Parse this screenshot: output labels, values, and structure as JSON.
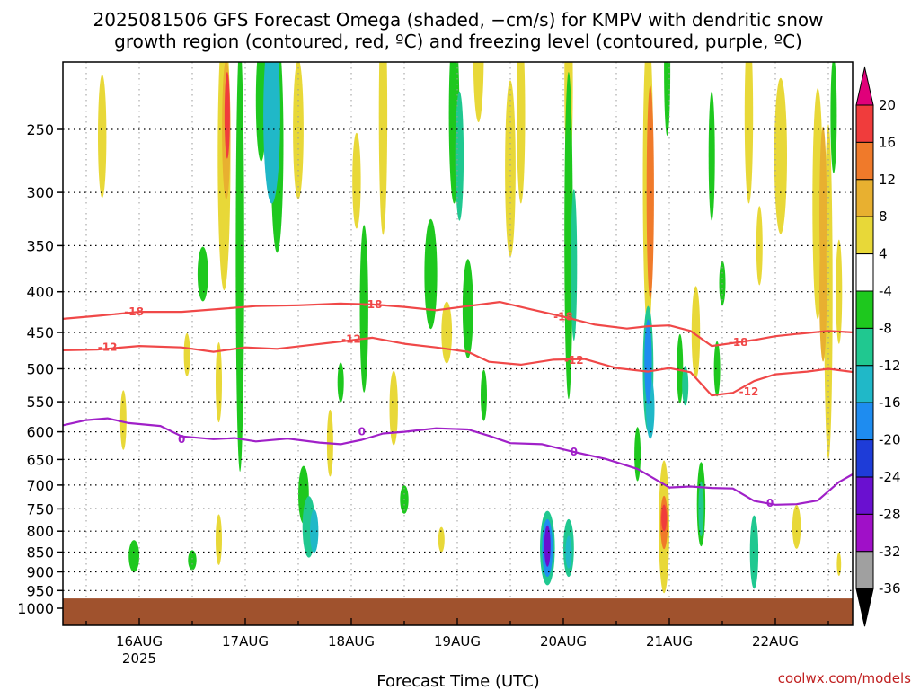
{
  "chart_data": {
    "type": "heatmap",
    "title_line1": "2025081506 GFS Forecast Omega (shaded, −cm/s) for KMPV with dendritic snow",
    "title_line2": "growth region (contoured, red, ºC) and freezing level (contoured, purple, ºC)",
    "xlabel": "Forecast Time (UTC)",
    "credit": "coolwx.com/models",
    "x_ticks": [
      {
        "day": 16,
        "label": "16AUG",
        "sublabel": "2025"
      },
      {
        "day": 17,
        "label": "17AUG",
        "sublabel": ""
      },
      {
        "day": 18,
        "label": "18AUG",
        "sublabel": ""
      },
      {
        "day": 19,
        "label": "19AUG",
        "sublabel": ""
      },
      {
        "day": 20,
        "label": "20AUG",
        "sublabel": ""
      },
      {
        "day": 21,
        "label": "21AUG",
        "sublabel": ""
      },
      {
        "day": 22,
        "label": "22AUG",
        "sublabel": ""
      }
    ],
    "xlim": [
      15.25,
      22.75
    ],
    "y_ticks": [
      250,
      300,
      350,
      400,
      450,
      500,
      550,
      600,
      650,
      700,
      750,
      800,
      850,
      900,
      950,
      1000
    ],
    "ylim": [
      200,
      1020
    ],
    "y_scale": "log-pressure",
    "colorbar": {
      "levels": [
        "20",
        "16",
        "12",
        "8",
        "4",
        "-4",
        "-8",
        "-12",
        "-16",
        "-20",
        "-24",
        "-28",
        "-32",
        "-36"
      ],
      "bins": [
        {
          "color": "#e0007a"
        },
        {
          "color": "#f03c3c"
        },
        {
          "color": "#f07a2a"
        },
        {
          "color": "#e8b030"
        },
        {
          "color": "#e8d838"
        },
        {
          "color": "#ffffff"
        },
        {
          "color": "#1ec81e"
        },
        {
          "color": "#20c890"
        },
        {
          "color": "#20b8c8"
        },
        {
          "color": "#1e8cf0"
        },
        {
          "color": "#1e3cd8"
        },
        {
          "color": "#6a10d0"
        },
        {
          "color": "#a010c8"
        },
        {
          "color": "#a0a0a0"
        },
        {
          "color": "#000000"
        }
      ]
    },
    "contours": [
      {
        "name": "-18",
        "color": "#f04848",
        "label": "-18",
        "points": [
          [
            15.25,
            433
          ],
          [
            15.6,
            429
          ],
          [
            16.0,
            424
          ],
          [
            16.4,
            424
          ],
          [
            16.8,
            420
          ],
          [
            17.1,
            417
          ],
          [
            17.5,
            416
          ],
          [
            17.9,
            414
          ],
          [
            18.2,
            415
          ],
          [
            18.5,
            418
          ],
          [
            18.8,
            422
          ],
          [
            19.1,
            417
          ],
          [
            19.4,
            412
          ],
          [
            19.7,
            421
          ],
          [
            20.0,
            430
          ],
          [
            20.3,
            440
          ],
          [
            20.6,
            445
          ],
          [
            20.8,
            442
          ],
          [
            21.0,
            441
          ],
          [
            21.2,
            448
          ],
          [
            21.4,
            468
          ],
          [
            21.6,
            464
          ],
          [
            21.8,
            460
          ],
          [
            22.0,
            455
          ],
          [
            22.2,
            452
          ],
          [
            22.5,
            448
          ],
          [
            22.75,
            450
          ]
        ],
        "label_at": [
          [
            15.95,
            424
          ],
          [
            18.2,
            415
          ],
          [
            20.0,
            430
          ],
          [
            21.65,
            463
          ]
        ]
      },
      {
        "name": "-12",
        "color": "#f04848",
        "label": "-12",
        "points": [
          [
            15.25,
            474
          ],
          [
            15.6,
            473
          ],
          [
            16.0,
            468
          ],
          [
            16.4,
            470
          ],
          [
            16.7,
            476
          ],
          [
            17.0,
            470
          ],
          [
            17.3,
            472
          ],
          [
            17.6,
            467
          ],
          [
            17.9,
            462
          ],
          [
            18.2,
            457
          ],
          [
            18.5,
            465
          ],
          [
            18.8,
            470
          ],
          [
            19.1,
            476
          ],
          [
            19.3,
            490
          ],
          [
            19.6,
            494
          ],
          [
            19.9,
            487
          ],
          [
            20.2,
            486
          ],
          [
            20.5,
            499
          ],
          [
            20.8,
            504
          ],
          [
            21.0,
            499
          ],
          [
            21.2,
            505
          ],
          [
            21.4,
            540
          ],
          [
            21.6,
            536
          ],
          [
            21.8,
            518
          ],
          [
            22.0,
            508
          ],
          [
            22.3,
            504
          ],
          [
            22.5,
            500
          ],
          [
            22.75,
            505
          ]
        ],
        "label_at": [
          [
            15.7,
            470
          ],
          [
            18.0,
            459
          ],
          [
            20.1,
            488
          ],
          [
            21.75,
            534
          ]
        ]
      },
      {
        "name": "0",
        "color": "#a020c8",
        "label": "0",
        "points": [
          [
            15.25,
            590
          ],
          [
            15.5,
            580
          ],
          [
            15.7,
            577
          ],
          [
            15.9,
            585
          ],
          [
            16.2,
            590
          ],
          [
            16.4,
            608
          ],
          [
            16.7,
            613
          ],
          [
            16.9,
            611
          ],
          [
            17.1,
            617
          ],
          [
            17.4,
            612
          ],
          [
            17.7,
            619
          ],
          [
            17.9,
            622
          ],
          [
            18.1,
            614
          ],
          [
            18.3,
            603
          ],
          [
            18.5,
            600
          ],
          [
            18.8,
            594
          ],
          [
            19.1,
            596
          ],
          [
            19.3,
            607
          ],
          [
            19.5,
            620
          ],
          [
            19.8,
            622
          ],
          [
            20.1,
            636
          ],
          [
            20.4,
            649
          ],
          [
            20.7,
            668
          ],
          [
            21.0,
            705
          ],
          [
            21.2,
            703
          ],
          [
            21.4,
            706
          ],
          [
            21.6,
            707
          ],
          [
            21.8,
            733
          ],
          [
            22.0,
            741
          ],
          [
            22.2,
            740
          ],
          [
            22.4,
            732
          ],
          [
            22.6,
            694
          ],
          [
            22.75,
            676
          ]
        ],
        "label_at": [
          [
            16.4,
            613
          ],
          [
            18.1,
            600
          ],
          [
            20.1,
            636
          ],
          [
            21.95,
            738
          ]
        ]
      }
    ],
    "omega_blobs": [
      {
        "t": 15.65,
        "p": 255,
        "rt": 0.04,
        "rp": 45,
        "v": 5
      },
      {
        "t": 15.85,
        "p": 580,
        "rt": 0.03,
        "rp": 50,
        "v": 5
      },
      {
        "t": 15.95,
        "p": 860,
        "rt": 0.05,
        "rp": 40,
        "v": -6
      },
      {
        "t": 16.45,
        "p": 480,
        "rt": 0.03,
        "rp": 30,
        "v": 5
      },
      {
        "t": 16.5,
        "p": 870,
        "rt": 0.04,
        "rp": 25,
        "v": -5
      },
      {
        "t": 16.6,
        "p": 380,
        "rt": 0.05,
        "rp": 30,
        "v": -6
      },
      {
        "t": 16.8,
        "p": 270,
        "rt": 0.06,
        "rp": 100,
        "v": 6
      },
      {
        "t": 16.82,
        "p": 250,
        "rt": 0.04,
        "rp": 50,
        "v": 11
      },
      {
        "t": 16.83,
        "p": 240,
        "rt": 0.025,
        "rp": 30,
        "v": 17
      },
      {
        "t": 16.75,
        "p": 820,
        "rt": 0.03,
        "rp": 60,
        "v": 5
      },
      {
        "t": 16.75,
        "p": 520,
        "rt": 0.03,
        "rp": 60,
        "v": 5
      },
      {
        "t": 16.95,
        "p": 360,
        "rt": 0.04,
        "rp": 200,
        "v": -6
      },
      {
        "t": 17.15,
        "p": 230,
        "rt": 0.05,
        "rp": 40,
        "v": -8
      },
      {
        "t": 17.25,
        "p": 240,
        "rt": 0.08,
        "rp": 60,
        "v": -14
      },
      {
        "t": 17.3,
        "p": 260,
        "rt": 0.06,
        "rp": 80,
        "v": -7
      },
      {
        "t": 17.5,
        "p": 250,
        "rt": 0.05,
        "rp": 50,
        "v": 5
      },
      {
        "t": 17.55,
        "p": 720,
        "rt": 0.05,
        "rp": 60,
        "v": -6
      },
      {
        "t": 17.6,
        "p": 790,
        "rt": 0.06,
        "rp": 70,
        "v": -10
      },
      {
        "t": 17.65,
        "p": 800,
        "rt": 0.04,
        "rp": 50,
        "v": -14
      },
      {
        "t": 17.8,
        "p": 620,
        "rt": 0.03,
        "rp": 60,
        "v": 5
      },
      {
        "t": 17.9,
        "p": 520,
        "rt": 0.03,
        "rp": 30,
        "v": -6
      },
      {
        "t": 18.05,
        "p": 290,
        "rt": 0.04,
        "rp": 40,
        "v": 5
      },
      {
        "t": 18.12,
        "p": 420,
        "rt": 0.04,
        "rp": 100,
        "v": -6
      },
      {
        "t": 18.3,
        "p": 240,
        "rt": 0.04,
        "rp": 80,
        "v": 5
      },
      {
        "t": 18.4,
        "p": 560,
        "rt": 0.04,
        "rp": 60,
        "v": 5
      },
      {
        "t": 18.5,
        "p": 730,
        "rt": 0.04,
        "rp": 30,
        "v": -6
      },
      {
        "t": 18.75,
        "p": 380,
        "rt": 0.06,
        "rp": 60,
        "v": -6
      },
      {
        "t": 18.9,
        "p": 450,
        "rt": 0.05,
        "rp": 40,
        "v": 5
      },
      {
        "t": 18.85,
        "p": 820,
        "rt": 0.03,
        "rp": 30,
        "v": 5
      },
      {
        "t": 18.97,
        "p": 240,
        "rt": 0.05,
        "rp": 60,
        "v": -6
      },
      {
        "t": 19.02,
        "p": 270,
        "rt": 0.04,
        "rp": 50,
        "v": -12
      },
      {
        "t": 19.1,
        "p": 420,
        "rt": 0.05,
        "rp": 60,
        "v": -6
      },
      {
        "t": 19.2,
        "p": 200,
        "rt": 0.05,
        "rp": 40,
        "v": 5
      },
      {
        "t": 19.25,
        "p": 540,
        "rt": 0.03,
        "rp": 40,
        "v": -6
      },
      {
        "t": 19.5,
        "p": 280,
        "rt": 0.05,
        "rp": 70,
        "v": 5
      },
      {
        "t": 19.6,
        "p": 240,
        "rt": 0.04,
        "rp": 60,
        "v": 5
      },
      {
        "t": 19.85,
        "p": 840,
        "rt": 0.07,
        "rp": 90,
        "v": -10
      },
      {
        "t": 19.85,
        "p": 840,
        "rt": 0.05,
        "rp": 70,
        "v": -18
      },
      {
        "t": 19.85,
        "p": 835,
        "rt": 0.03,
        "rp": 50,
        "v": -26
      },
      {
        "t": 20.05,
        "p": 840,
        "rt": 0.05,
        "rp": 70,
        "v": -10
      },
      {
        "t": 20.05,
        "p": 850,
        "rt": 0.03,
        "rp": 40,
        "v": -14
      },
      {
        "t": 20.05,
        "p": 340,
        "rt": 0.04,
        "rp": 150,
        "v": -6
      },
      {
        "t": 20.1,
        "p": 370,
        "rt": 0.03,
        "rp": 80,
        "v": -10
      },
      {
        "t": 20.05,
        "p": 220,
        "rt": 0.04,
        "rp": 60,
        "v": 5
      },
      {
        "t": 20.7,
        "p": 640,
        "rt": 0.03,
        "rp": 50,
        "v": -6
      },
      {
        "t": 20.8,
        "p": 290,
        "rt": 0.05,
        "rp": 120,
        "v": 6
      },
      {
        "t": 20.82,
        "p": 300,
        "rt": 0.035,
        "rp": 90,
        "v": 12
      },
      {
        "t": 20.8,
        "p": 500,
        "rt": 0.05,
        "rp": 90,
        "v": -10
      },
      {
        "t": 20.8,
        "p": 490,
        "rt": 0.035,
        "rp": 60,
        "v": -17
      },
      {
        "t": 20.82,
        "p": 560,
        "rt": 0.04,
        "rp": 50,
        "v": -13
      },
      {
        "t": 20.95,
        "p": 790,
        "rt": 0.05,
        "rp": 150,
        "v": 7
      },
      {
        "t": 20.95,
        "p": 780,
        "rt": 0.035,
        "rp": 60,
        "v": 14
      },
      {
        "t": 20.95,
        "p": 770,
        "rt": 0.025,
        "rp": 30,
        "v": 19
      },
      {
        "t": 20.98,
        "p": 210,
        "rt": 0.03,
        "rp": 40,
        "v": -6
      },
      {
        "t": 21.1,
        "p": 500,
        "rt": 0.03,
        "rp": 50,
        "v": -6
      },
      {
        "t": 21.15,
        "p": 525,
        "rt": 0.03,
        "rp": 30,
        "v": -10
      },
      {
        "t": 21.25,
        "p": 450,
        "rt": 0.04,
        "rp": 60,
        "v": 5
      },
      {
        "t": 21.3,
        "p": 740,
        "rt": 0.04,
        "rp": 90,
        "v": -6
      },
      {
        "t": 21.3,
        "p": 750,
        "rt": 0.025,
        "rp": 60,
        "v": -10
      },
      {
        "t": 21.4,
        "p": 270,
        "rt": 0.03,
        "rp": 50,
        "v": -6
      },
      {
        "t": 21.45,
        "p": 500,
        "rt": 0.03,
        "rp": 40,
        "v": -6
      },
      {
        "t": 21.5,
        "p": 390,
        "rt": 0.03,
        "rp": 25,
        "v": -6
      },
      {
        "t": 21.8,
        "p": 850,
        "rt": 0.04,
        "rp": 90,
        "v": -10
      },
      {
        "t": 21.75,
        "p": 240,
        "rt": 0.04,
        "rp": 60,
        "v": 5
      },
      {
        "t": 21.85,
        "p": 350,
        "rt": 0.03,
        "rp": 40,
        "v": 5
      },
      {
        "t": 22.05,
        "p": 270,
        "rt": 0.06,
        "rp": 60,
        "v": 5
      },
      {
        "t": 22.2,
        "p": 790,
        "rt": 0.04,
        "rp": 50,
        "v": 5
      },
      {
        "t": 22.4,
        "p": 310,
        "rt": 0.05,
        "rp": 100,
        "v": 5
      },
      {
        "t": 22.45,
        "p": 320,
        "rt": 0.035,
        "rp": 80,
        "v": 8
      },
      {
        "t": 22.45,
        "p": 400,
        "rt": 0.035,
        "rp": 80,
        "v": 9
      },
      {
        "t": 22.55,
        "p": 240,
        "rt": 0.03,
        "rp": 40,
        "v": -7
      },
      {
        "t": 22.5,
        "p": 400,
        "rt": 0.04,
        "rp": 180,
        "v": 5
      },
      {
        "t": 22.6,
        "p": 400,
        "rt": 0.03,
        "rp": 60,
        "v": 5
      },
      {
        "t": 22.6,
        "p": 880,
        "rt": 0.02,
        "rp": 30,
        "v": 5
      }
    ],
    "surface": {
      "color": "#a0522d",
      "top_pressure": 972
    }
  }
}
